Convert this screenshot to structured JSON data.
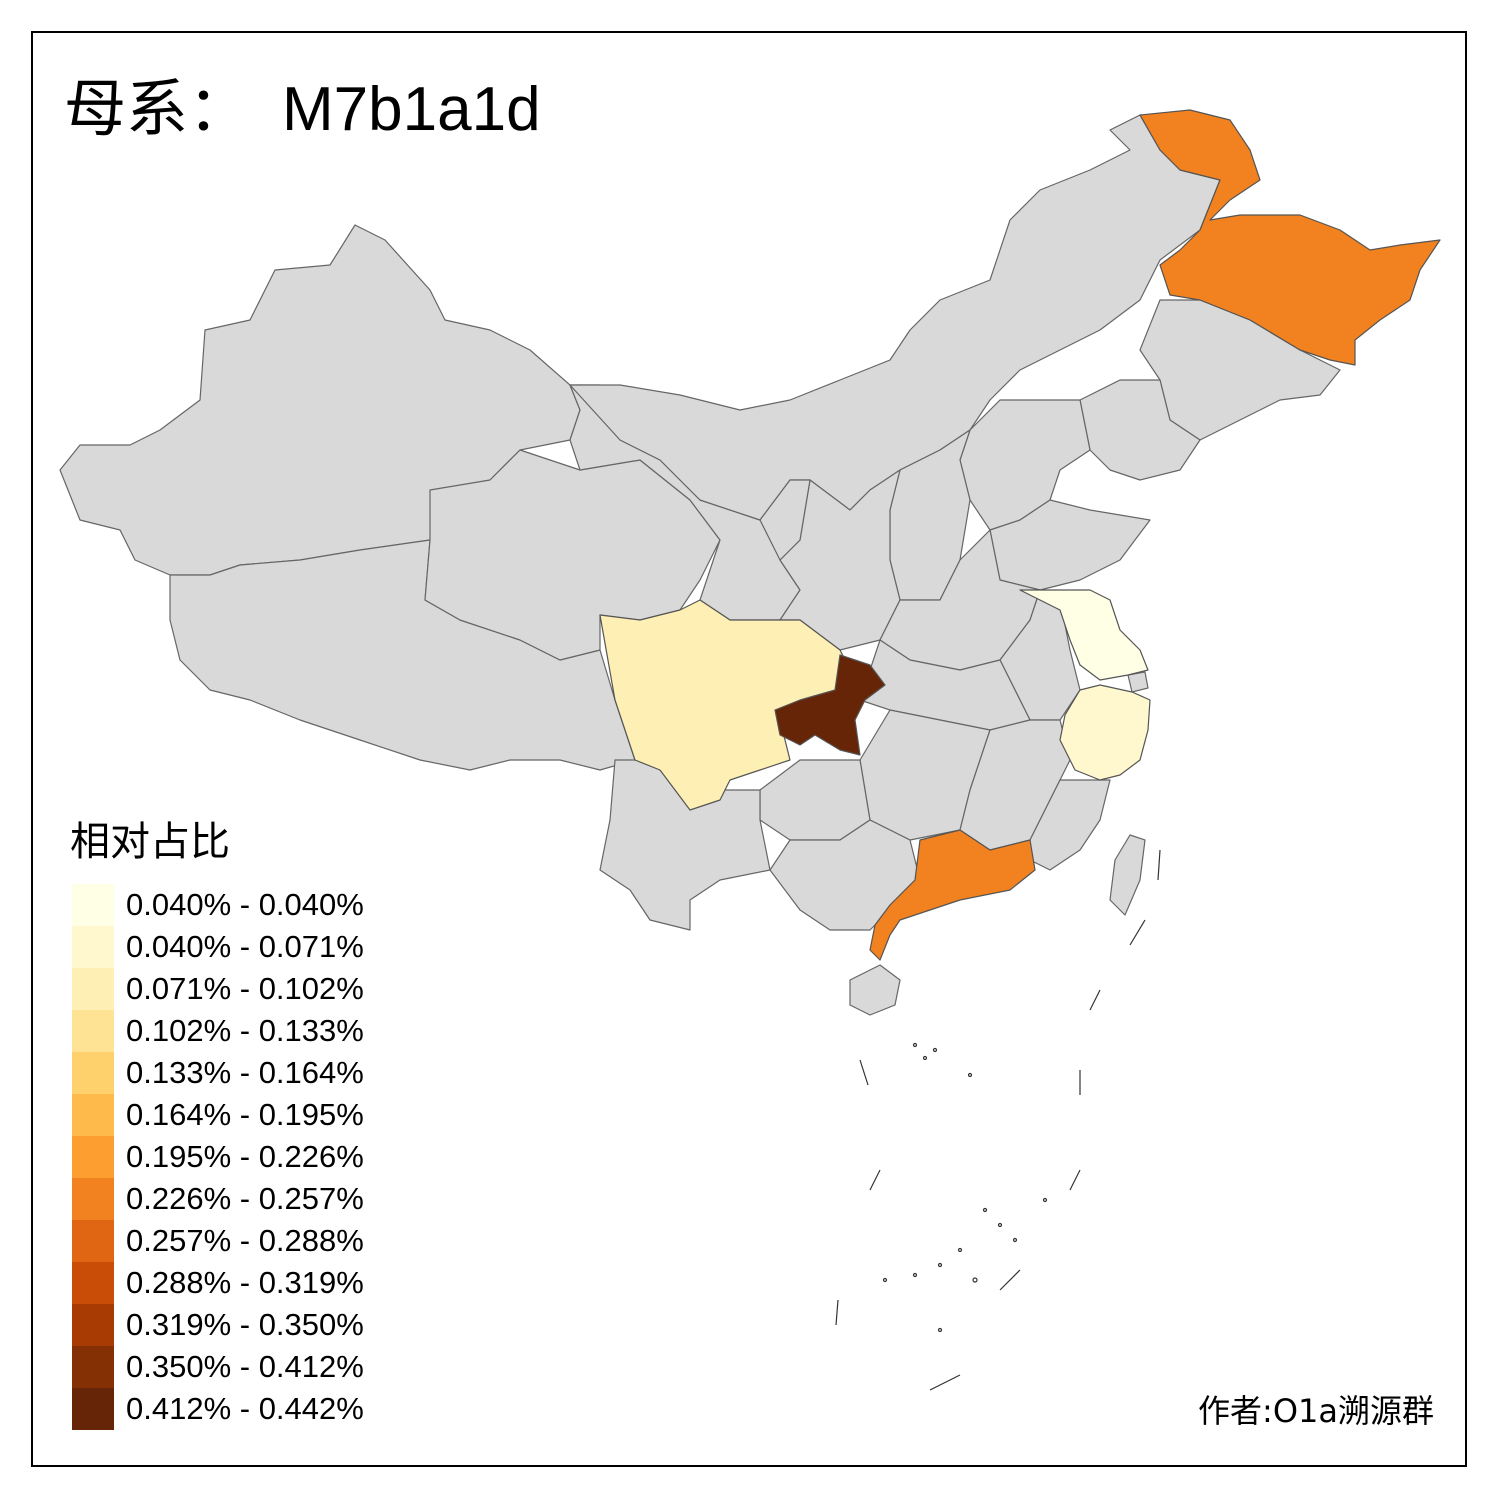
{
  "title": {
    "prefix": "母系：",
    "haplogroup": "M7b1a1d"
  },
  "legend": {
    "title": "相对占比",
    "items": [
      {
        "label": "0.040% - 0.040%",
        "color": "#FFFFE5"
      },
      {
        "label": "0.040% - 0.071%",
        "color": "#FFF8CE"
      },
      {
        "label": "0.071% - 0.102%",
        "color": "#FEEFB5"
      },
      {
        "label": "0.102% - 0.133%",
        "color": "#FEE395"
      },
      {
        "label": "0.133% - 0.164%",
        "color": "#FED16D"
      },
      {
        "label": "0.164% - 0.195%",
        "color": "#FEBA4A"
      },
      {
        "label": "0.195% - 0.226%",
        "color": "#FC9F30"
      },
      {
        "label": "0.226% - 0.257%",
        "color": "#F1821F"
      },
      {
        "label": "0.257% - 0.288%",
        "color": "#E06613"
      },
      {
        "label": "0.288% - 0.319%",
        "color": "#C94D06"
      },
      {
        "label": "0.319% - 0.350%",
        "color": "#A83B04"
      },
      {
        "label": "0.350% - 0.412%",
        "color": "#853004"
      },
      {
        "label": "0.412% - 0.442%",
        "color": "#662506"
      }
    ]
  },
  "map": {
    "base_color": "#D9D9D9",
    "border_color": "#666666",
    "highlighted_regions": [
      {
        "region": "heilongjiang",
        "color": "#F1821F"
      },
      {
        "region": "guangdong",
        "color": "#F1821F"
      },
      {
        "region": "chongqing",
        "color": "#662506"
      },
      {
        "region": "sichuan",
        "color": "#FEEFB5"
      },
      {
        "region": "jiangsu",
        "color": "#FFFFE5"
      },
      {
        "region": "zhejiang",
        "color": "#FFF8CE"
      }
    ]
  },
  "author": "作者:O1a溯源群"
}
